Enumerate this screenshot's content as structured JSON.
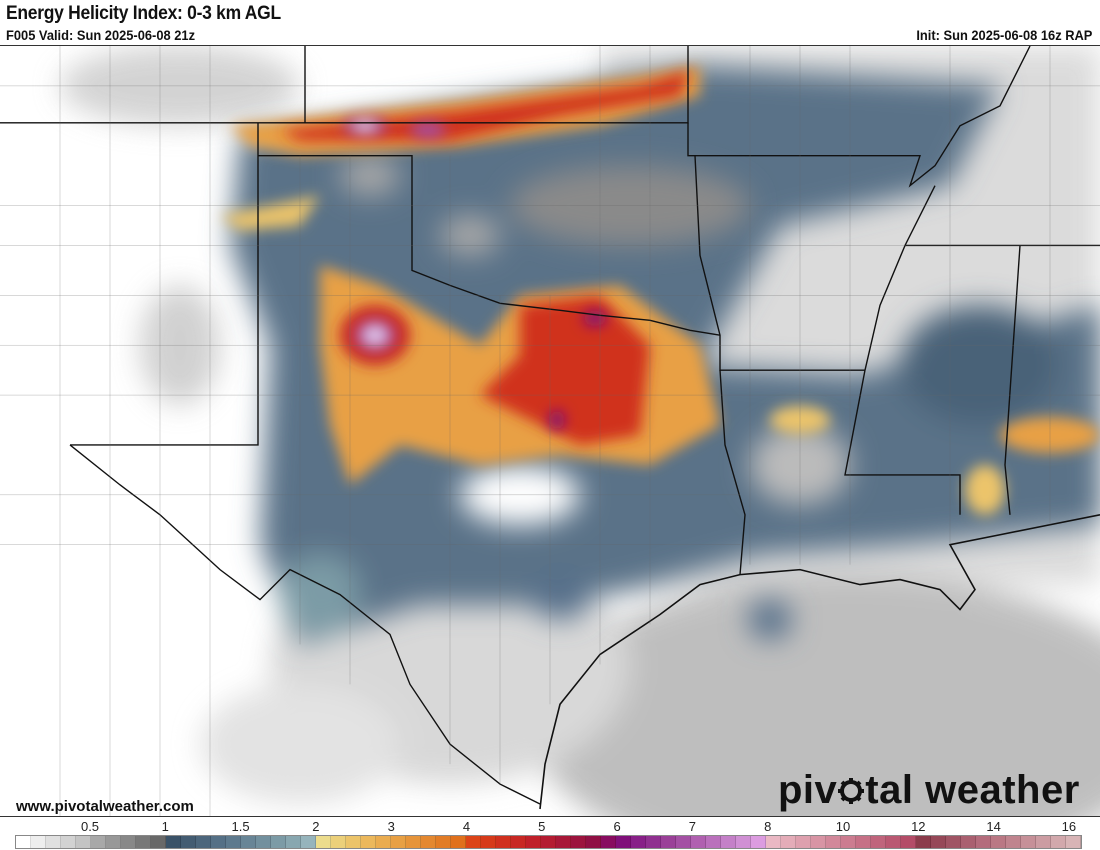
{
  "header": {
    "title": "Energy Helicity Index: 0-3 km AGL",
    "valid": "F005 Valid: Sun 2025-06-08 21z",
    "init": "Init: Sun 2025-06-08 16z RAP"
  },
  "footer": {
    "url": "www.pivotalweather.com",
    "logo_text_left": "piv",
    "logo_text_right": "tal weather",
    "logo_icon": "gear-icon"
  },
  "colorbar": {
    "labels": [
      "0.5",
      "1",
      "1.5",
      "2",
      "3",
      "4",
      "5",
      "6",
      "7",
      "8",
      "10",
      "12",
      "14",
      "16"
    ],
    "colors": [
      "#ffffff",
      "#eeeeee",
      "#e0e0e0",
      "#d2d2d2",
      "#c4c4c4",
      "#a8a8a8",
      "#989898",
      "#888888",
      "#787878",
      "#686868",
      "#3a5268",
      "#435c72",
      "#4c667c",
      "#557086",
      "#5e7a8e",
      "#688596",
      "#72909e",
      "#7c9ba6",
      "#88a7b0",
      "#96b4bc",
      "#ecdc8c",
      "#ecd07a",
      "#ecc46a",
      "#ecb85c",
      "#eaac50",
      "#e8a044",
      "#e6943a",
      "#e48830",
      "#e27c26",
      "#e0701c",
      "#dc4418",
      "#d63a1a",
      "#d0301e",
      "#c82824",
      "#c0202a",
      "#b41c32",
      "#a81838",
      "#9c143e",
      "#901044",
      "#880c60",
      "#80107a",
      "#882088",
      "#903090",
      "#9a4098",
      "#a450a4",
      "#b060b0",
      "#ba70bc",
      "#c480c8",
      "#d090d4",
      "#dc9ce0",
      "#eab8c4",
      "#e4acb8",
      "#dea0ae",
      "#d894a4",
      "#d2889a",
      "#cc7c90",
      "#c67086",
      "#c0647c",
      "#ba5872",
      "#b44c68",
      "#8c3c4c",
      "#964858",
      "#a05464",
      "#aa6070",
      "#b46c7c",
      "#ba7884",
      "#c0848e",
      "#c69098",
      "#cc9ca2",
      "#d2a8ac",
      "#d8b4b6"
    ]
  },
  "map": {
    "field": "Energy Helicity Index",
    "background_color": "#ffffff",
    "border_color": "#111111"
  }
}
